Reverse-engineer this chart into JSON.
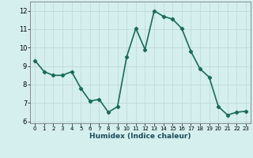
{
  "x": [
    0,
    1,
    2,
    3,
    4,
    5,
    6,
    7,
    8,
    9,
    10,
    11,
    12,
    13,
    14,
    15,
    16,
    17,
    18,
    19,
    20,
    21,
    22,
    23
  ],
  "y": [
    9.3,
    8.7,
    8.5,
    8.5,
    8.7,
    7.8,
    7.1,
    7.2,
    6.5,
    6.8,
    9.5,
    11.05,
    9.9,
    12.0,
    11.7,
    11.55,
    11.05,
    9.8,
    8.85,
    8.4,
    6.8,
    6.35,
    6.5,
    6.55
  ],
  "xlabel": "Humidex (Indice chaleur)",
  "xlim": [
    -0.5,
    23.5
  ],
  "ylim": [
    5.9,
    12.5
  ],
  "yticks": [
    6,
    7,
    8,
    9,
    10,
    11,
    12
  ],
  "xticks": [
    0,
    1,
    2,
    3,
    4,
    5,
    6,
    7,
    8,
    9,
    10,
    11,
    12,
    13,
    14,
    15,
    16,
    17,
    18,
    19,
    20,
    21,
    22,
    23
  ],
  "line_color": "#1a6b5a",
  "bg_color": "#d4efee",
  "grid_color": "#c2dada",
  "marker": "D",
  "marker_size": 2.2,
  "linewidth": 1.2
}
